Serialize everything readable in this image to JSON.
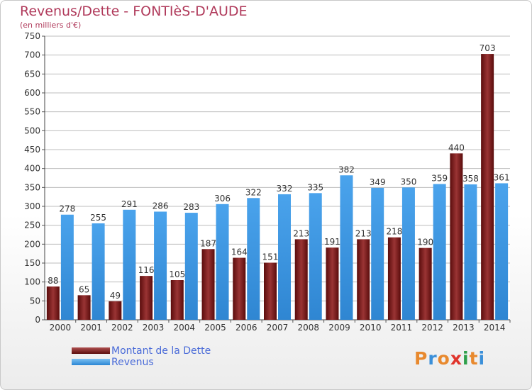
{
  "header": {
    "title": "Revenus/Dette - FONTIèS-D'AUDE",
    "subtitle": "(en milliers d'€)"
  },
  "legend": [
    {
      "label": "Montant de la Dette",
      "color": "#7a1e1e"
    },
    {
      "label": "Revenus",
      "color": "#3d97e3"
    }
  ],
  "logo": {
    "text": "Proxiti",
    "letters": [
      {
        "ch": "P",
        "color": "#e8892e"
      },
      {
        "ch": "r",
        "color": "#3a8fd9"
      },
      {
        "ch": "o",
        "color": "#e8892e"
      },
      {
        "ch": "x",
        "color": "#e0342c"
      },
      {
        "ch": "i",
        "color": "#2e9f4a"
      },
      {
        "ch": "t",
        "color": "#e8892e"
      },
      {
        "ch": "i",
        "color": "#3a8fd9"
      }
    ]
  },
  "chart_data": {
    "type": "bar",
    "categories": [
      "2000",
      "2001",
      "2002",
      "2003",
      "2004",
      "2005",
      "2006",
      "2007",
      "2008",
      "2009",
      "2010",
      "2011",
      "2012",
      "2013",
      "2014"
    ],
    "series": [
      {
        "name": "Montant de la Dette",
        "color": "#7a1e1e",
        "values": [
          88,
          65,
          49,
          116,
          105,
          187,
          164,
          151,
          213,
          191,
          213,
          218,
          190,
          440,
          703
        ]
      },
      {
        "name": "Revenus",
        "color": "#3d97e3",
        "values": [
          278,
          255,
          291,
          286,
          283,
          306,
          322,
          332,
          335,
          382,
          349,
          350,
          359,
          358,
          361
        ]
      }
    ],
    "ylim": [
      0,
      750
    ],
    "yticks": [
      0,
      50,
      100,
      150,
      200,
      250,
      300,
      350,
      400,
      450,
      500,
      550,
      600,
      650,
      700,
      750
    ],
    "grid": true
  }
}
